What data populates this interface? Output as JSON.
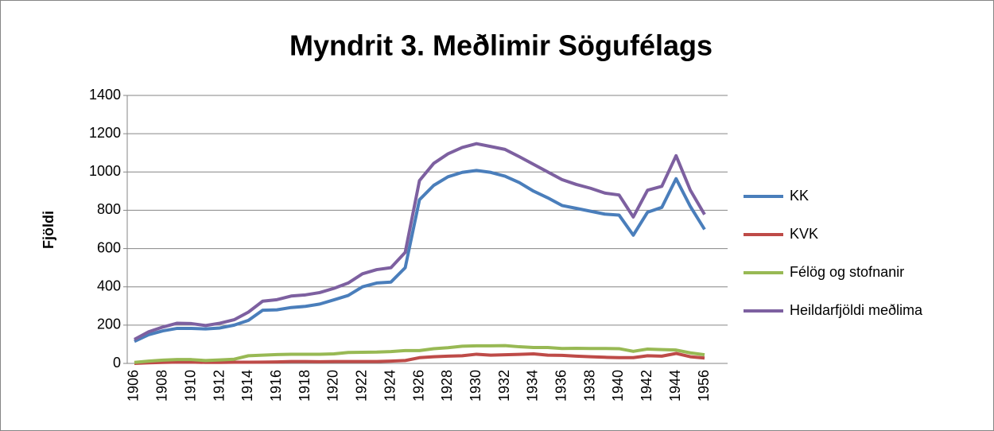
{
  "chart_data": {
    "type": "line",
    "title": "Myndrit 3. Meðlimir Sögufélags",
    "y_label": "Fjöldi",
    "categories": [
      "1906",
      null,
      "1908",
      null,
      "1910",
      null,
      "1912",
      null,
      "1914",
      null,
      "1916",
      null,
      "1918",
      null,
      "1920",
      null,
      "1922",
      null,
      "1924",
      null,
      "1926",
      null,
      "1928",
      null,
      "1930",
      null,
      "1932",
      null,
      "1934",
      null,
      "1936",
      null,
      "1938",
      null,
      "1940",
      null,
      "1942",
      null,
      "1944",
      null,
      "1956"
    ],
    "series": [
      {
        "name": "KK",
        "color": "#4a7ebb",
        "values": [
          115,
          150,
          170,
          183,
          183,
          180,
          185,
          200,
          225,
          278,
          280,
          292,
          298,
          310,
          332,
          355,
          400,
          420,
          425,
          500,
          855,
          930,
          975,
          998,
          1008,
          998,
          978,
          945,
          900,
          865,
          825,
          810,
          795,
          780,
          775,
          670,
          790,
          815,
          965,
          820,
          700
        ]
      },
      {
        "name": "KVK",
        "color": "#be4b48",
        "values": [
          0,
          3,
          5,
          7,
          7,
          5,
          5,
          6,
          6,
          7,
          8,
          10,
          10,
          9,
          10,
          10,
          10,
          10,
          12,
          15,
          30,
          35,
          38,
          40,
          48,
          43,
          45,
          47,
          50,
          43,
          42,
          38,
          35,
          32,
          30,
          30,
          40,
          38,
          52,
          35,
          28
        ]
      },
      {
        "name": "Félög og stofnanir",
        "color": "#98b954",
        "values": [
          5,
          12,
          17,
          20,
          20,
          15,
          18,
          22,
          40,
          43,
          46,
          48,
          48,
          48,
          50,
          57,
          58,
          59,
          62,
          67,
          67,
          77,
          82,
          90,
          92,
          92,
          93,
          87,
          83,
          83,
          78,
          79,
          78,
          78,
          77,
          63,
          75,
          72,
          70,
          55,
          45
        ]
      },
      {
        "name": "Heildarfjöldi meðlima",
        "color": "#7d60a0",
        "values": [
          125,
          165,
          190,
          210,
          208,
          198,
          210,
          228,
          268,
          325,
          333,
          352,
          358,
          370,
          392,
          420,
          468,
          490,
          500,
          580,
          955,
          1045,
          1095,
          1128,
          1148,
          1133,
          1118,
          1080,
          1040,
          1000,
          960,
          935,
          915,
          890,
          880,
          765,
          905,
          925,
          1085,
          905,
          778
        ]
      }
    ],
    "ylim": [
      0,
      1400
    ],
    "yticks": [
      0,
      200,
      400,
      600,
      800,
      1000,
      1200,
      1400
    ],
    "grid": true,
    "legend": "right"
  }
}
